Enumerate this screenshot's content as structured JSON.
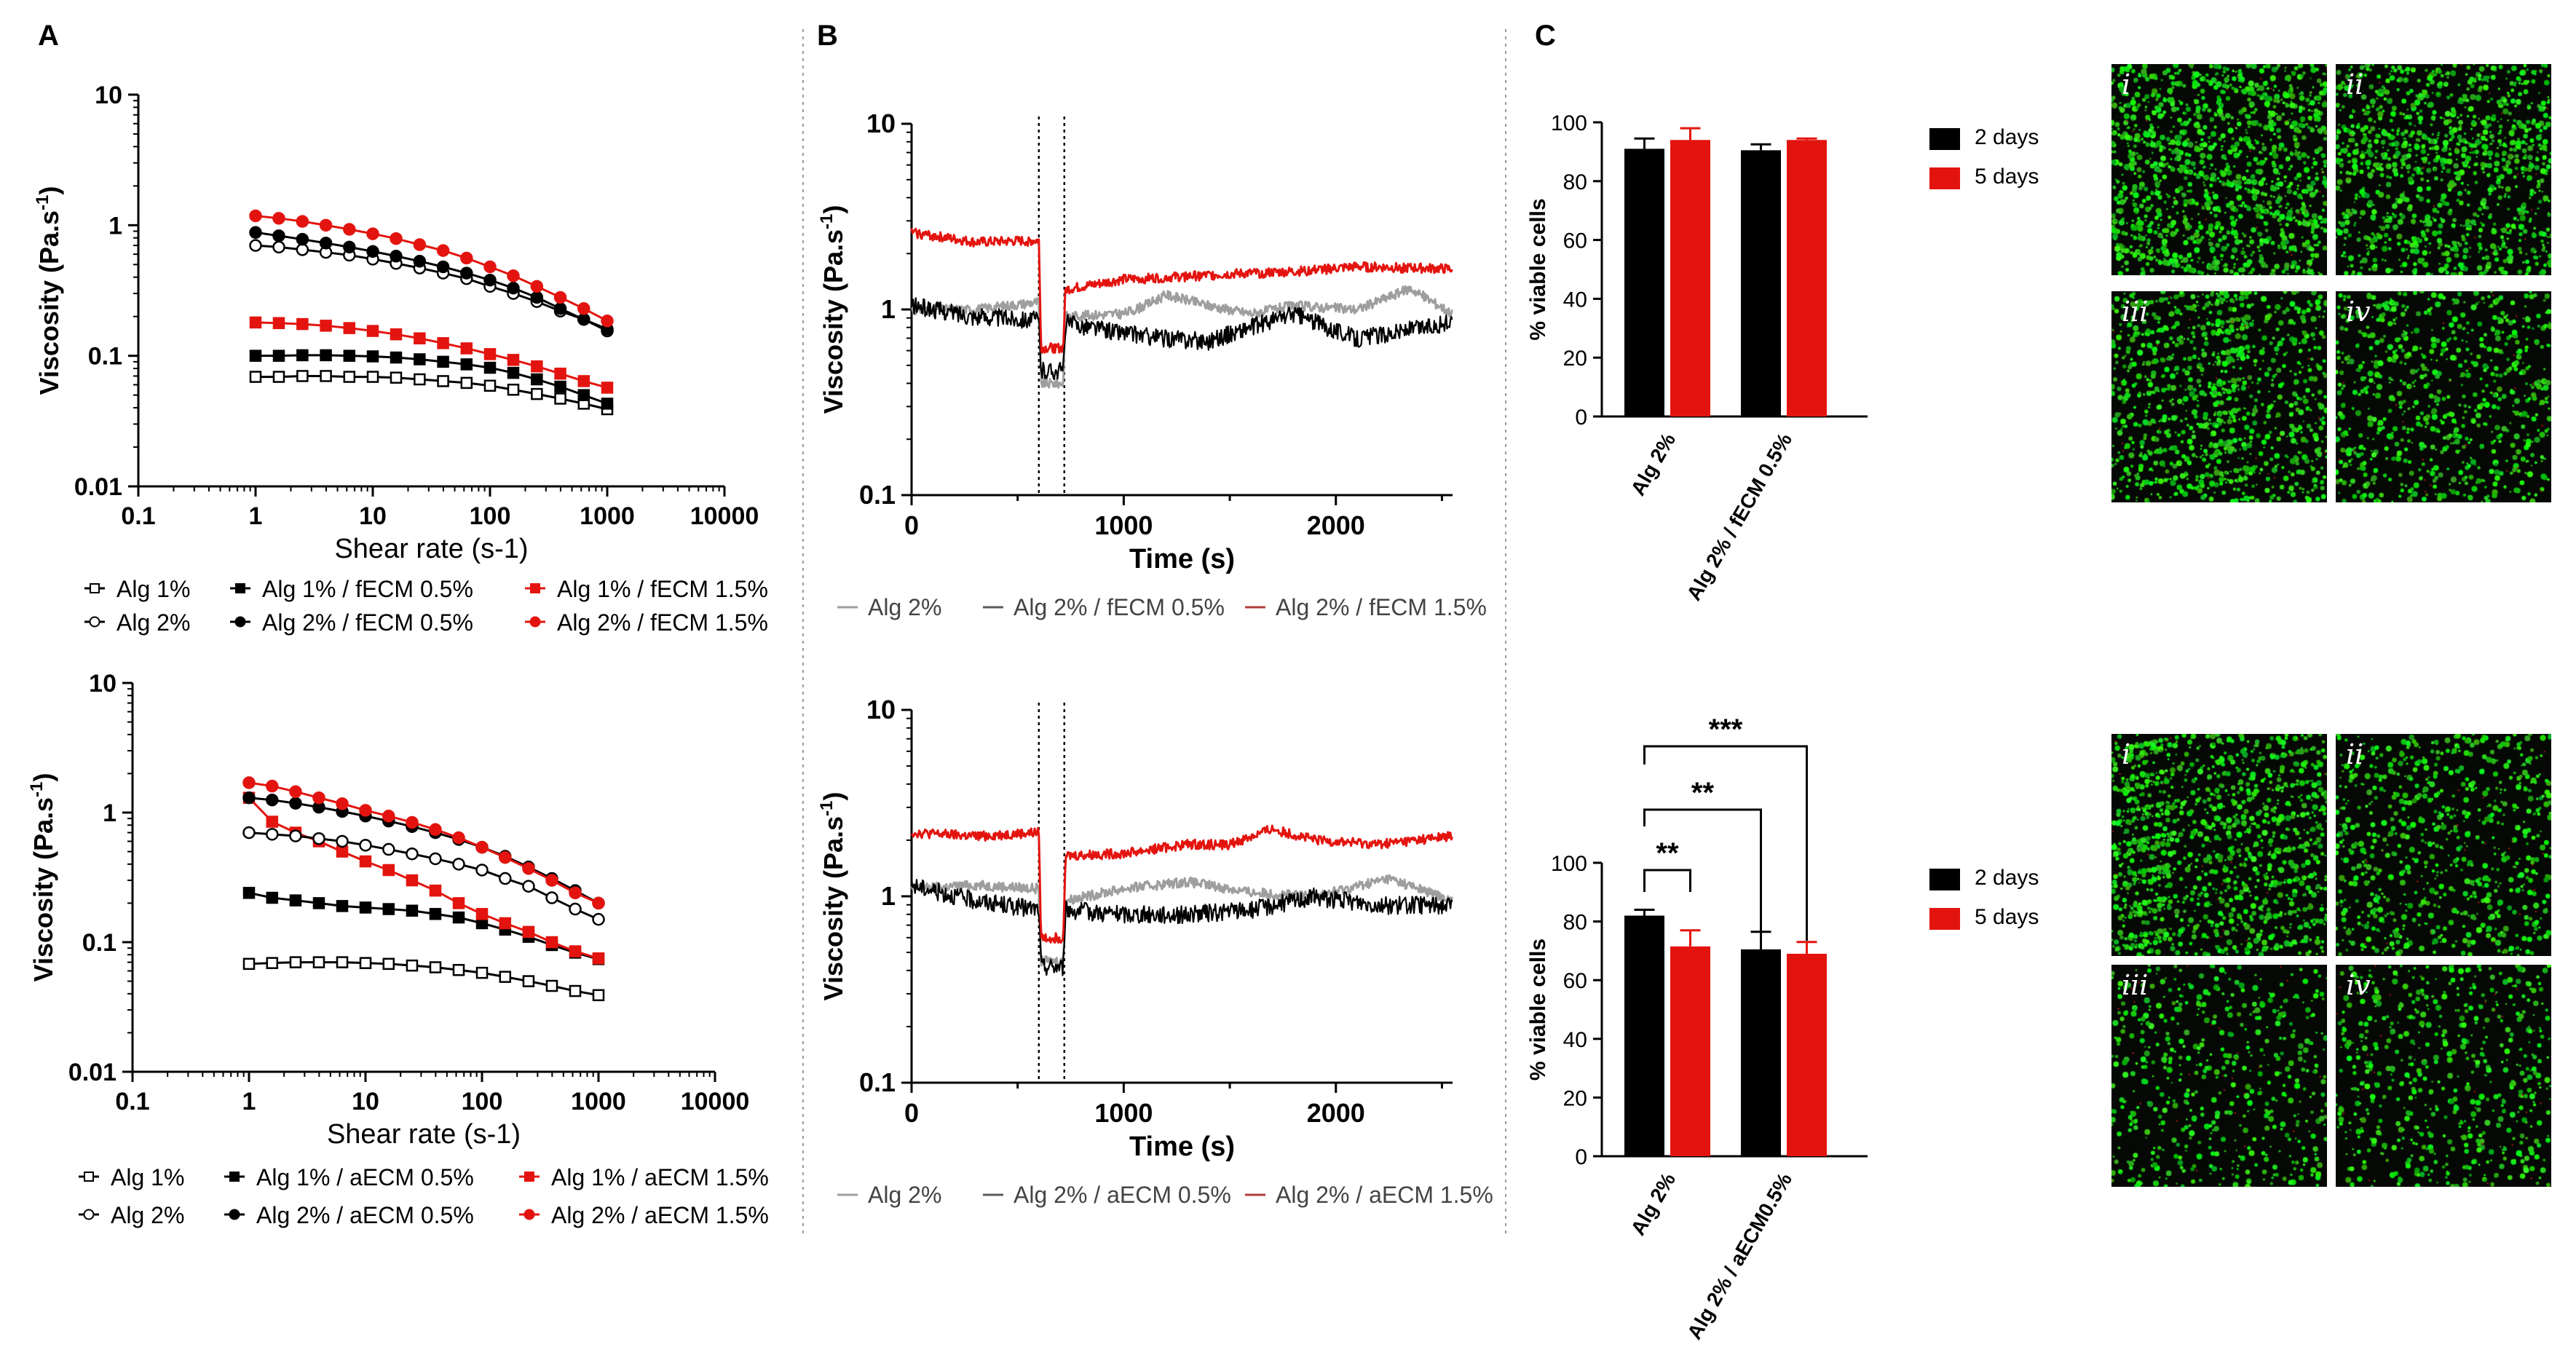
{
  "panels": {
    "A": "A",
    "B": "B",
    "C": "C"
  },
  "colors": {
    "black": "#000000",
    "red": "#e3140f",
    "grey": "#9e9e9e",
    "dark_grey": "#5a5a5a",
    "dark_red": "#b23b3b"
  },
  "chart_data": [
    {
      "id": "A_top",
      "type": "line",
      "xscale": "log",
      "yscale": "log",
      "xlabel": "Shear rate (s-1)",
      "ylabel": "Viscosity (Pa.s-1)",
      "xlim": [
        0.1,
        10000
      ],
      "ylim": [
        0.01,
        10
      ],
      "xticks": [
        "0.1",
        "1",
        "10",
        "100",
        "1000",
        "10000"
      ],
      "yticks": [
        "0.01",
        "0.1",
        "1",
        "10"
      ],
      "x": [
        1,
        1.58,
        2.51,
        3.98,
        6.31,
        10,
        15.8,
        25.1,
        39.8,
        63.1,
        100,
        158,
        251,
        398,
        631,
        1000
      ],
      "series": [
        {
          "name": "Alg 1%",
          "color": "black",
          "marker": "square-open",
          "values": [
            0.069,
            0.069,
            0.07,
            0.07,
            0.069,
            0.069,
            0.068,
            0.066,
            0.064,
            0.062,
            0.059,
            0.055,
            0.051,
            0.047,
            0.043,
            0.039
          ]
        },
        {
          "name": "Alg 1% / fECM 0.5%",
          "color": "black",
          "marker": "square-filled",
          "values": [
            0.1,
            0.1,
            0.101,
            0.101,
            0.1,
            0.099,
            0.097,
            0.094,
            0.09,
            0.086,
            0.081,
            0.074,
            0.066,
            0.058,
            0.05,
            0.043
          ]
        },
        {
          "name": "Alg 1% / fECM 1.5%",
          "color": "red",
          "marker": "square-filled",
          "values": [
            0.18,
            0.178,
            0.175,
            0.17,
            0.163,
            0.155,
            0.146,
            0.136,
            0.125,
            0.114,
            0.103,
            0.093,
            0.083,
            0.073,
            0.064,
            0.057
          ]
        },
        {
          "name": "Alg 2%",
          "color": "black",
          "marker": "circle-open",
          "values": [
            0.7,
            0.68,
            0.65,
            0.62,
            0.59,
            0.55,
            0.51,
            0.47,
            0.43,
            0.39,
            0.34,
            0.3,
            0.26,
            0.22,
            0.19,
            0.155
          ]
        },
        {
          "name": "Alg 2% / fECM 0.5%",
          "color": "black",
          "marker": "circle-filled",
          "values": [
            0.88,
            0.83,
            0.78,
            0.73,
            0.68,
            0.63,
            0.58,
            0.53,
            0.48,
            0.43,
            0.38,
            0.33,
            0.28,
            0.23,
            0.19,
            0.16
          ]
        },
        {
          "name": "Alg 2% / fECM 1.5%",
          "color": "red",
          "marker": "circle-filled",
          "values": [
            1.18,
            1.13,
            1.07,
            1.0,
            0.93,
            0.86,
            0.79,
            0.71,
            0.64,
            0.56,
            0.48,
            0.41,
            0.34,
            0.28,
            0.23,
            0.185
          ]
        }
      ]
    },
    {
      "id": "A_bottom",
      "type": "line",
      "xscale": "log",
      "yscale": "log",
      "xlabel": "Shear rate (s-1)",
      "ylabel": "Viscosity (Pa.s-1)",
      "xlim": [
        0.1,
        10000
      ],
      "ylim": [
        0.01,
        10
      ],
      "xticks": [
        "0.1",
        "1",
        "10",
        "100",
        "1000",
        "10000"
      ],
      "yticks": [
        "0.01",
        "0.1",
        "1",
        "10"
      ],
      "x": [
        1,
        1.58,
        2.51,
        3.98,
        6.31,
        10,
        15.8,
        25.1,
        39.8,
        63.1,
        100,
        158,
        251,
        398,
        631,
        1000
      ],
      "series": [
        {
          "name": "Alg 1%",
          "color": "black",
          "marker": "square-open",
          "values": [
            0.068,
            0.069,
            0.07,
            0.07,
            0.07,
            0.069,
            0.068,
            0.066,
            0.064,
            0.061,
            0.058,
            0.054,
            0.05,
            0.046,
            0.042,
            0.039
          ]
        },
        {
          "name": "Alg 1% / aECM 0.5%",
          "color": "black",
          "marker": "square-filled",
          "values": [
            0.24,
            0.22,
            0.21,
            0.2,
            0.19,
            0.185,
            0.18,
            0.175,
            0.165,
            0.155,
            0.14,
            0.125,
            0.11,
            0.095,
            0.083,
            0.074
          ]
        },
        {
          "name": "Alg 1% / aECM 1.5%",
          "color": "red",
          "marker": "square-filled",
          "values": [
            1.3,
            0.85,
            0.7,
            0.6,
            0.5,
            0.42,
            0.36,
            0.3,
            0.25,
            0.2,
            0.165,
            0.14,
            0.12,
            0.1,
            0.085,
            0.075
          ]
        },
        {
          "name": "Alg 2%",
          "color": "black",
          "marker": "circle-open",
          "values": [
            0.7,
            0.68,
            0.66,
            0.63,
            0.6,
            0.56,
            0.52,
            0.48,
            0.44,
            0.4,
            0.36,
            0.31,
            0.27,
            0.22,
            0.18,
            0.15
          ]
        },
        {
          "name": "Alg 2% / aECM 0.5%",
          "color": "black",
          "marker": "circle-filled",
          "values": [
            1.3,
            1.25,
            1.18,
            1.1,
            1.02,
            0.94,
            0.86,
            0.78,
            0.7,
            0.62,
            0.54,
            0.46,
            0.38,
            0.31,
            0.25,
            0.2
          ]
        },
        {
          "name": "Alg 2% / aECM 1.5%",
          "color": "red",
          "marker": "circle-filled",
          "values": [
            1.7,
            1.6,
            1.45,
            1.3,
            1.17,
            1.04,
            0.94,
            0.84,
            0.74,
            0.64,
            0.54,
            0.45,
            0.37,
            0.3,
            0.24,
            0.2
          ]
        }
      ]
    },
    {
      "id": "B_top",
      "type": "line",
      "yscale": "log",
      "xlabel": "Time (s)",
      "ylabel": "Viscosity (Pa.s-1)",
      "xlim": [
        0,
        2550
      ],
      "ylim": [
        0.1,
        10
      ],
      "xticks": [
        "0",
        "1000",
        "2000"
      ],
      "yticks": [
        "0.1",
        "1",
        "10"
      ],
      "vlines": [
        600,
        720
      ],
      "series": [
        {
          "name": "Alg 2%",
          "color": "grey",
          "profile": [
            [
              0,
              1.0
            ],
            [
              300,
              1.0
            ],
            [
              600,
              1.1
            ],
            [
              610,
              0.4
            ],
            [
              715,
              0.4
            ],
            [
              725,
              0.92
            ],
            [
              1000,
              0.95
            ],
            [
              1100,
              1.05
            ],
            [
              1200,
              1.2
            ],
            [
              1400,
              1.05
            ],
            [
              1600,
              0.95
            ],
            [
              1800,
              1.05
            ],
            [
              2100,
              1.0
            ],
            [
              2350,
              1.3
            ],
            [
              2550,
              0.95
            ]
          ]
        },
        {
          "name": "Alg 2% / fECM 0.5%",
          "color": "dark_grey",
          "profile": [
            [
              0,
              1.05
            ],
            [
              300,
              0.92
            ],
            [
              600,
              0.88
            ],
            [
              610,
              0.47
            ],
            [
              715,
              0.47
            ],
            [
              725,
              0.85
            ],
            [
              1000,
              0.75
            ],
            [
              1200,
              0.7
            ],
            [
              1400,
              0.68
            ],
            [
              1800,
              0.95
            ],
            [
              2100,
              0.7
            ],
            [
              2550,
              0.85
            ]
          ]
        },
        {
          "name": "Alg 2% / fECM 1.5%",
          "color": "dark_red",
          "profile": [
            [
              0,
              2.6
            ],
            [
              300,
              2.3
            ],
            [
              600,
              2.35
            ],
            [
              610,
              0.62
            ],
            [
              715,
              0.62
            ],
            [
              725,
              1.28
            ],
            [
              1000,
              1.45
            ],
            [
              1500,
              1.55
            ],
            [
              1800,
              1.6
            ],
            [
              2100,
              1.7
            ],
            [
              2550,
              1.65
            ]
          ]
        }
      ]
    },
    {
      "id": "B_bottom",
      "type": "line",
      "yscale": "log",
      "xlabel": "Time (s)",
      "ylabel": "Viscosity (Pa.s-1)",
      "xlim": [
        0,
        2550
      ],
      "ylim": [
        0.1,
        10
      ],
      "xticks": [
        "0",
        "1000",
        "2000"
      ],
      "yticks": [
        "0.1",
        "1",
        "10"
      ],
      "vlines": [
        600,
        720
      ],
      "series": [
        {
          "name": "Alg 2%",
          "color": "grey",
          "profile": [
            [
              0,
              1.1
            ],
            [
              300,
              1.15
            ],
            [
              600,
              1.1
            ],
            [
              610,
              0.45
            ],
            [
              715,
              0.45
            ],
            [
              725,
              0.95
            ],
            [
              1000,
              1.1
            ],
            [
              1300,
              1.2
            ],
            [
              1600,
              1.05
            ],
            [
              1900,
              1.0
            ],
            [
              2250,
              1.25
            ],
            [
              2550,
              0.95
            ]
          ]
        },
        {
          "name": "Alg 2% / aECM 0.5%",
          "color": "dark_grey",
          "profile": [
            [
              0,
              1.15
            ],
            [
              300,
              0.95
            ],
            [
              600,
              0.85
            ],
            [
              610,
              0.42
            ],
            [
              715,
              0.42
            ],
            [
              725,
              0.85
            ],
            [
              1000,
              0.8
            ],
            [
              1300,
              0.8
            ],
            [
              1600,
              0.85
            ],
            [
              1900,
              1.0
            ],
            [
              2200,
              0.9
            ],
            [
              2550,
              0.9
            ]
          ]
        },
        {
          "name": "Alg 2% / aECM 1.5%",
          "color": "dark_red",
          "profile": [
            [
              0,
              2.2
            ],
            [
              300,
              2.1
            ],
            [
              600,
              2.2
            ],
            [
              610,
              0.6
            ],
            [
              715,
              0.6
            ],
            [
              725,
              1.65
            ],
            [
              1000,
              1.7
            ],
            [
              1300,
              1.9
            ],
            [
              1500,
              1.9
            ],
            [
              1700,
              2.3
            ],
            [
              1900,
              2.0
            ],
            [
              2200,
              1.9
            ],
            [
              2550,
              2.1
            ]
          ]
        }
      ]
    },
    {
      "id": "C_top",
      "type": "bar",
      "ylabel": "% viable cells",
      "ylim": [
        0,
        100
      ],
      "yticks": [
        "0",
        "20",
        "40",
        "60",
        "80",
        "100"
      ],
      "categories": [
        "Alg 2%",
        "Alg 2% / fECM 0.5%"
      ],
      "series": [
        {
          "name": "2 days",
          "color": "black",
          "values": [
            91,
            90.5
          ],
          "errors": [
            3.5,
            2
          ]
        },
        {
          "name": "5 days",
          "color": "red",
          "values": [
            94,
            94
          ],
          "errors": [
            4,
            0.5
          ]
        }
      ]
    },
    {
      "id": "C_bottom",
      "type": "bar",
      "ylabel": "% viable cells",
      "ylim": [
        0,
        100
      ],
      "yticks": [
        "0",
        "20",
        "40",
        "60",
        "80",
        "100"
      ],
      "categories": [
        "Alg 2%",
        "Alg 2% / aECM0.5%"
      ],
      "series": [
        {
          "name": "2 days",
          "color": "black",
          "values": [
            82,
            70.5
          ],
          "errors": [
            2,
            6
          ]
        },
        {
          "name": "5 days",
          "color": "red",
          "values": [
            71.5,
            69
          ],
          "errors": [
            5.5,
            4
          ]
        }
      ],
      "significance": [
        "**",
        "**",
        "***"
      ]
    }
  ],
  "micrographs": {
    "top": [
      {
        "label": "i",
        "density": 1.0
      },
      {
        "label": "ii",
        "density": 0.85
      },
      {
        "label": "iii",
        "density": 0.75
      },
      {
        "label": "iv",
        "density": 0.55
      }
    ],
    "bottom": [
      {
        "label": "i",
        "density": 0.9
      },
      {
        "label": "ii",
        "density": 0.55
      },
      {
        "label": "iii",
        "density": 0.4
      },
      {
        "label": "iv",
        "density": 0.45
      }
    ]
  }
}
